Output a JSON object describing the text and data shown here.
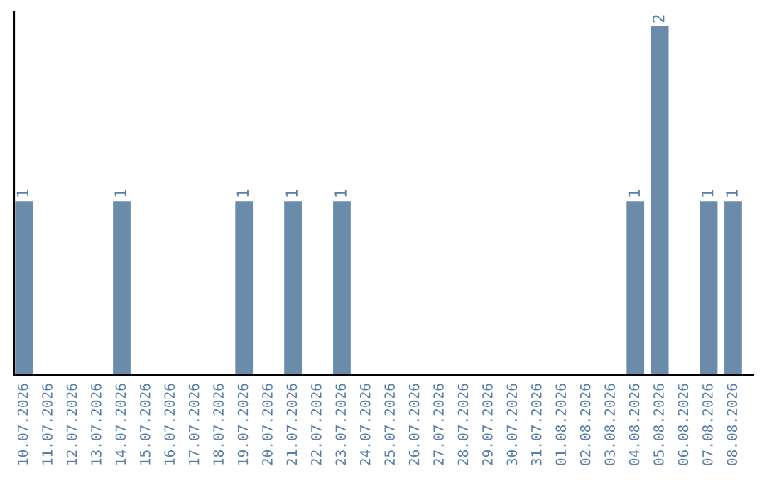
{
  "chart_data": {
    "type": "bar",
    "categories": [
      "10.07.2026",
      "11.07.2026",
      "12.07.2026",
      "13.07.2026",
      "14.07.2026",
      "15.07.2026",
      "16.07.2026",
      "17.07.2026",
      "18.07.2026",
      "19.07.2026",
      "20.07.2026",
      "21.07.2026",
      "22.07.2026",
      "23.07.2026",
      "24.07.2026",
      "25.07.2026",
      "26.07.2026",
      "27.07.2026",
      "28.07.2026",
      "29.07.2026",
      "30.07.2026",
      "31.07.2026",
      "01.08.2026",
      "02.08.2026",
      "03.08.2026",
      "04.08.2026",
      "05.08.2026",
      "06.08.2026",
      "07.08.2026",
      "08.08.2026"
    ],
    "values": [
      1,
      null,
      null,
      null,
      1,
      null,
      null,
      null,
      null,
      1,
      null,
      1,
      null,
      1,
      null,
      null,
      null,
      null,
      null,
      null,
      null,
      null,
      null,
      null,
      null,
      1,
      2,
      null,
      1,
      1
    ],
    "value_labels": [
      "1",
      null,
      null,
      null,
      "1",
      null,
      null,
      null,
      null,
      "1",
      null,
      "1",
      null,
      "1",
      null,
      null,
      null,
      null,
      null,
      null,
      null,
      null,
      null,
      null,
      null,
      "1",
      "2",
      null,
      "1",
      "1"
    ],
    "color": "#6a8caa",
    "tick_labels": "x",
    "grid": false,
    "legend": false
  }
}
